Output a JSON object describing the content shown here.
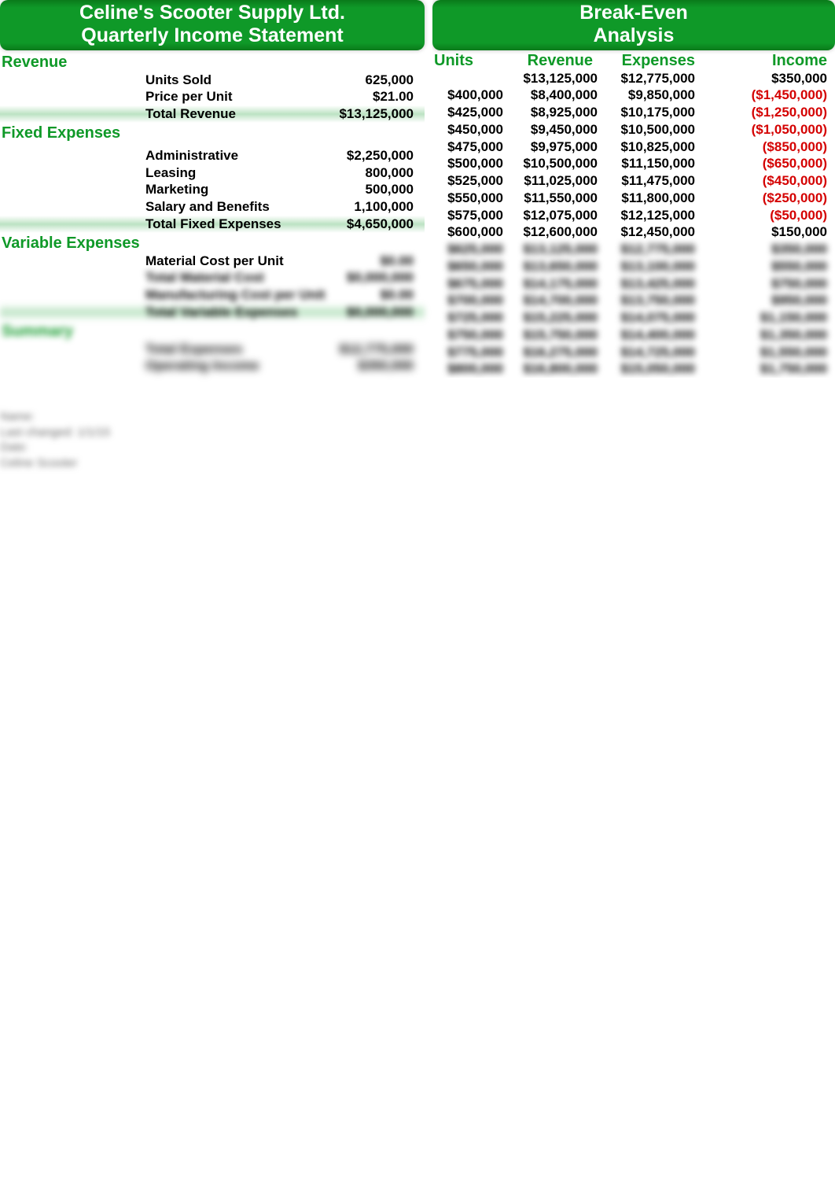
{
  "left": {
    "title_line1": "Celine's Scooter Supply Ltd.",
    "title_line2": "Quarterly Income Statement",
    "sections": {
      "revenue": {
        "heading": "Revenue",
        "rows": [
          {
            "label": "Units Sold",
            "value": "625,000"
          },
          {
            "label": "Price per Unit",
            "value": "$21.00"
          }
        ],
        "total": {
          "label": "Total Revenue",
          "value": "$13,125,000"
        }
      },
      "fixed": {
        "heading": "Fixed Expenses",
        "rows": [
          {
            "label": "Administrative",
            "value": "$2,250,000"
          },
          {
            "label": "Leasing",
            "value": "800,000"
          },
          {
            "label": "Marketing",
            "value": "500,000"
          },
          {
            "label": "Salary and Benefits",
            "value": "1,100,000"
          }
        ],
        "total": {
          "label": "Total Fixed Expenses",
          "value": "$4,650,000"
        }
      },
      "variable": {
        "heading": "Variable Expenses",
        "rows": [
          {
            "label": "Material Cost per Unit",
            "value": "$0.00"
          },
          {
            "label": "Total Material Cost",
            "value": "$0,000,000"
          },
          {
            "label": "Manufacturing Cost per Unit",
            "value": "$0.00"
          }
        ],
        "total": {
          "label": "Total Variable Expenses",
          "value": "$0,000,000"
        }
      },
      "summary": {
        "heading": "Summary",
        "rows": [
          {
            "label": "Total Expenses",
            "value": "$12,775,000"
          },
          {
            "label": "Operating Income",
            "value": "$350,000"
          }
        ]
      }
    }
  },
  "right": {
    "title_line1": "Break-Even",
    "title_line2": "Analysis",
    "columns": {
      "units": "Units",
      "revenue": "Revenue",
      "expenses": "Expenses",
      "income": "Income"
    },
    "rows": [
      {
        "units": "",
        "rev": "$13,125,000",
        "exp": "$12,775,000",
        "inc": "$350,000",
        "neg": false
      },
      {
        "units": "$400,000",
        "rev": "$8,400,000",
        "exp": "$9,850,000",
        "inc": "($1,450,000)",
        "neg": true
      },
      {
        "units": "$425,000",
        "rev": "$8,925,000",
        "exp": "$10,175,000",
        "inc": "($1,250,000)",
        "neg": true
      },
      {
        "units": "$450,000",
        "rev": "$9,450,000",
        "exp": "$10,500,000",
        "inc": "($1,050,000)",
        "neg": true
      },
      {
        "units": "$475,000",
        "rev": "$9,975,000",
        "exp": "$10,825,000",
        "inc": "($850,000)",
        "neg": true
      },
      {
        "units": "$500,000",
        "rev": "$10,500,000",
        "exp": "$11,150,000",
        "inc": "($650,000)",
        "neg": true
      },
      {
        "units": "$525,000",
        "rev": "$11,025,000",
        "exp": "$11,475,000",
        "inc": "($450,000)",
        "neg": true
      },
      {
        "units": "$550,000",
        "rev": "$11,550,000",
        "exp": "$11,800,000",
        "inc": "($250,000)",
        "neg": true
      },
      {
        "units": "$575,000",
        "rev": "$12,075,000",
        "exp": "$12,125,000",
        "inc": "($50,000)",
        "neg": true
      },
      {
        "units": "$600,000",
        "rev": "$12,600,000",
        "exp": "$12,450,000",
        "inc": "$150,000",
        "neg": false
      },
      {
        "units": "$625,000",
        "rev": "$13,125,000",
        "exp": "$12,775,000",
        "inc": "$350,000",
        "neg": false,
        "blur": true
      },
      {
        "units": "$650,000",
        "rev": "$13,650,000",
        "exp": "$13,100,000",
        "inc": "$550,000",
        "neg": false,
        "blur": true
      },
      {
        "units": "$675,000",
        "rev": "$14,175,000",
        "exp": "$13,425,000",
        "inc": "$750,000",
        "neg": false,
        "blur": true
      },
      {
        "units": "$700,000",
        "rev": "$14,700,000",
        "exp": "$13,750,000",
        "inc": "$950,000",
        "neg": false,
        "blur": true
      },
      {
        "units": "$725,000",
        "rev": "$15,225,000",
        "exp": "$14,075,000",
        "inc": "$1,150,000",
        "neg": false,
        "blur": true
      },
      {
        "units": "$750,000",
        "rev": "$15,750,000",
        "exp": "$14,400,000",
        "inc": "$1,350,000",
        "neg": false,
        "blur": true
      },
      {
        "units": "$775,000",
        "rev": "$16,275,000",
        "exp": "$14,725,000",
        "inc": "$1,550,000",
        "neg": false,
        "blur": true
      },
      {
        "units": "$800,000",
        "rev": "$16,800,000",
        "exp": "$15,050,000",
        "inc": "$1,750,000",
        "neg": false,
        "blur": true
      }
    ]
  },
  "footer": {
    "l1": "Name:",
    "l2": "Last changed: 1/1/15",
    "l3": "Date:",
    "l4": "Celine Scooter"
  },
  "colors": {
    "accent": "#0f9928",
    "negative": "#d40000"
  }
}
